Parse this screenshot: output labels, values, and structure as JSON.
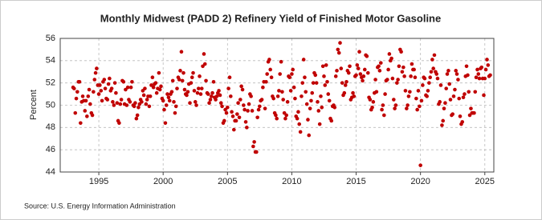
{
  "chart_data": {
    "type": "scatter",
    "title": "Monthly Midwest (PADD 2) Refinery Yield of Finished Motor Gasoline",
    "y_label": "Percent",
    "source": "Source: U.S. Energy Information Administration",
    "color": "#c00000",
    "grid": true,
    "xlim": [
      1992,
      2025.7
    ],
    "ylim": [
      44,
      56
    ],
    "xticks": [
      1995,
      2000,
      2005,
      2010,
      2015,
      2020,
      2025
    ],
    "yticks": [
      44,
      46,
      48,
      50,
      52,
      54,
      56
    ],
    "x": [
      1993.0,
      1993.08,
      1993.17,
      1993.25,
      1993.33,
      1993.42,
      1993.5,
      1993.58,
      1993.67,
      1993.75,
      1993.83,
      1993.92,
      1994.0,
      1994.08,
      1994.17,
      1994.25,
      1994.33,
      1994.42,
      1994.5,
      1994.58,
      1994.67,
      1994.75,
      1994.83,
      1994.92,
      1995.0,
      1995.08,
      1995.17,
      1995.25,
      1995.33,
      1995.42,
      1995.5,
      1995.58,
      1995.67,
      1995.75,
      1995.83,
      1995.92,
      1996.0,
      1996.08,
      1996.17,
      1996.25,
      1996.33,
      1996.42,
      1996.5,
      1996.58,
      1996.67,
      1996.75,
      1996.83,
      1996.92,
      1997.0,
      1997.08,
      1997.17,
      1997.25,
      1997.33,
      1997.42,
      1997.5,
      1997.58,
      1997.67,
      1997.75,
      1997.83,
      1997.92,
      1998.0,
      1998.08,
      1998.17,
      1998.25,
      1998.33,
      1998.42,
      1998.5,
      1998.58,
      1998.67,
      1998.75,
      1998.83,
      1998.92,
      1999.0,
      1999.08,
      1999.17,
      1999.25,
      1999.33,
      1999.42,
      1999.5,
      1999.58,
      1999.67,
      1999.75,
      1999.83,
      1999.92,
      2000.0,
      2000.08,
      2000.17,
      2000.25,
      2000.33,
      2000.42,
      2000.5,
      2000.58,
      2000.67,
      2000.75,
      2000.83,
      2000.92,
      2001.0,
      2001.08,
      2001.17,
      2001.25,
      2001.33,
      2001.42,
      2001.5,
      2001.58,
      2001.67,
      2001.75,
      2001.83,
      2001.92,
      2002.0,
      2002.08,
      2002.17,
      2002.25,
      2002.33,
      2002.42,
      2002.5,
      2002.58,
      2002.67,
      2002.75,
      2002.83,
      2002.92,
      2003.0,
      2003.08,
      2003.17,
      2003.25,
      2003.33,
      2003.42,
      2003.5,
      2003.58,
      2003.67,
      2003.75,
      2003.83,
      2003.92,
      2004.0,
      2004.08,
      2004.17,
      2004.25,
      2004.33,
      2004.42,
      2004.5,
      2004.58,
      2004.67,
      2004.75,
      2004.83,
      2004.92,
      2005.0,
      2005.08,
      2005.17,
      2005.25,
      2005.33,
      2005.42,
      2005.5,
      2005.58,
      2005.67,
      2005.75,
      2005.83,
      2005.92,
      2006.0,
      2006.08,
      2006.17,
      2006.25,
      2006.33,
      2006.42,
      2006.5,
      2006.58,
      2006.67,
      2006.75,
      2006.83,
      2006.92,
      2007.0,
      2007.08,
      2007.17,
      2007.25,
      2007.33,
      2007.42,
      2007.5,
      2007.58,
      2007.67,
      2007.75,
      2007.83,
      2007.92,
      2008.0,
      2008.08,
      2008.17,
      2008.25,
      2008.33,
      2008.42,
      2008.5,
      2008.58,
      2008.67,
      2008.75,
      2008.83,
      2008.92,
      2009.0,
      2009.08,
      2009.17,
      2009.25,
      2009.33,
      2009.42,
      2009.5,
      2009.58,
      2009.67,
      2009.75,
      2009.83,
      2009.92,
      2010.0,
      2010.08,
      2010.17,
      2010.25,
      2010.33,
      2010.42,
      2010.5,
      2010.58,
      2010.67,
      2010.75,
      2010.83,
      2010.92,
      2011.0,
      2011.08,
      2011.17,
      2011.25,
      2011.33,
      2011.42,
      2011.5,
      2011.58,
      2011.67,
      2011.75,
      2011.83,
      2011.92,
      2012.0,
      2012.08,
      2012.17,
      2012.25,
      2012.33,
      2012.42,
      2012.5,
      2012.58,
      2012.67,
      2012.75,
      2012.83,
      2012.92,
      2013.0,
      2013.08,
      2013.17,
      2013.25,
      2013.33,
      2013.42,
      2013.5,
      2013.58,
      2013.67,
      2013.75,
      2013.83,
      2013.92,
      2014.0,
      2014.08,
      2014.17,
      2014.25,
      2014.33,
      2014.42,
      2014.5,
      2014.58,
      2014.67,
      2014.75,
      2014.83,
      2014.92,
      2015.0,
      2015.08,
      2015.17,
      2015.25,
      2015.33,
      2015.42,
      2015.5,
      2015.58,
      2015.67,
      2015.75,
      2015.83,
      2015.92,
      2016.0,
      2016.08,
      2016.17,
      2016.25,
      2016.33,
      2016.42,
      2016.5,
      2016.58,
      2016.67,
      2016.75,
      2016.83,
      2016.92,
      2017.0,
      2017.08,
      2017.17,
      2017.25,
      2017.33,
      2017.42,
      2017.5,
      2017.58,
      2017.67,
      2017.75,
      2017.83,
      2017.92,
      2018.0,
      2018.08,
      2018.17,
      2018.25,
      2018.33,
      2018.42,
      2018.5,
      2018.58,
      2018.67,
      2018.75,
      2018.83,
      2018.92,
      2019.0,
      2019.08,
      2019.17,
      2019.25,
      2019.33,
      2019.42,
      2019.5,
      2019.58,
      2019.67,
      2019.75,
      2019.83,
      2019.92,
      2020.0,
      2020.08,
      2020.17,
      2020.25,
      2020.33,
      2020.42,
      2020.5,
      2020.58,
      2020.67,
      2020.75,
      2020.83,
      2020.92,
      2021.0,
      2021.08,
      2021.17,
      2021.25,
      2021.33,
      2021.42,
      2021.5,
      2021.58,
      2021.67,
      2021.75,
      2021.83,
      2021.92,
      2022.0,
      2022.08,
      2022.17,
      2022.25,
      2022.33,
      2022.42,
      2022.5,
      2022.58,
      2022.67,
      2022.75,
      2022.83,
      2022.92,
      2023.0,
      2023.08,
      2023.17,
      2023.25,
      2023.33,
      2023.42,
      2023.5,
      2023.58,
      2023.67,
      2023.75,
      2023.83,
      2023.92,
      2024.0,
      2024.08,
      2024.17,
      2024.25,
      2024.33,
      2024.42,
      2024.5,
      2024.58,
      2024.67,
      2024.75,
      2024.83,
      2024.92,
      2025.0,
      2025.08,
      2025.17,
      2025.25,
      2025.33,
      2025.42
    ],
    "values": [
      51.6,
      51.5,
      49.3,
      50.6,
      51.2,
      52.1,
      52.1,
      48.4,
      50.3,
      50.8,
      50.4,
      49.5,
      50.4,
      49.0,
      50.8,
      51.4,
      50.1,
      49.3,
      49.1,
      51.2,
      52.3,
      52.9,
      53.3,
      51.8,
      51.0,
      51.8,
      51.3,
      50.4,
      52.1,
      52.3,
      51.5,
      50.6,
      50.5,
      51.9,
      52.4,
      51.3,
      51.5,
      50.3,
      50.0,
      52.0,
      51.1,
      50.2,
      48.6,
      48.4,
      50.1,
      50.5,
      52.2,
      52.1,
      50.1,
      51.4,
      50.0,
      51.6,
      50.5,
      50.3,
      51.6,
      52.1,
      50.0,
      49.9,
      50.2,
      48.8,
      49.1,
      49.8,
      50.1,
      50.5,
      50.3,
      51.3,
      50.9,
      51.5,
      50.1,
      50.5,
      50.8,
      49.9,
      50.8,
      51.8,
      52.5,
      51.6,
      51.9,
      52.0,
      51.1,
      51.5,
      52.9,
      51.4,
      51.7,
      50.6,
      50.4,
      49.6,
      48.4,
      50.0,
      51.0,
      50.7,
      50.4,
      51.0,
      51.2,
      52.2,
      50.3,
      49.3,
      49.9,
      51.5,
      52.5,
      52.3,
      53.1,
      54.8,
      52.2,
      52.9,
      51.4,
      51.0,
      50.9,
      51.2,
      51.9,
      50.2,
      52.0,
      52.5,
      52.9,
      51.3,
      50.3,
      50.0,
      51.1,
      51.5,
      52.6,
      51.0,
      51.5,
      53.5,
      54.6,
      53.7,
      52.2,
      51.1,
      51.0,
      50.2,
      50.5,
      50.8,
      51.1,
      52.1,
      50.7,
      50.5,
      50.8,
      51.1,
      51.3,
      50.9,
      50.2,
      49.9,
      48.4,
      48.6,
      49.6,
      49.3,
      49.8,
      51.5,
      52.5,
      50.8,
      49.4,
      49.0,
      47.8,
      48.6,
      48.6,
      49.2,
      50.2,
      48.9,
      50.5,
      51.7,
      51.4,
      50.0,
      49.6,
      48.5,
      48.0,
      49.5,
      50.1,
      51.0,
      50.8,
      49.5,
      46.3,
      46.7,
      45.8,
      45.8,
      48.9,
      49.6,
      49.9,
      50.4,
      50.5,
      51.6,
      52.1,
      49.7,
      52.1,
      52.8,
      53.9,
      54.1,
      53.2,
      52.5,
      50.8,
      50.6,
      49.3,
      49.1,
      48.8,
      50.8,
      51.3,
      52.8,
      53.9,
      51.2,
      50.5,
      49.3,
      48.8,
      49.1,
      50.3,
      52.6,
      52.5,
      51.3,
      52.8,
      53.2,
      51.6,
      50.6,
      49.0,
      48.8,
      49.4,
      48.3,
      47.6,
      50.8,
      52.0,
      54.1,
      52.5,
      51.2,
      50.1,
      48.7,
      47.3,
      49.7,
      50.4,
      51.1,
      52.0,
      52.9,
      52.7,
      52.0,
      50.3,
      49.5,
      48.3,
      50.8,
      49.8,
      53.5,
      52.6,
      51.8,
      53.6,
      52.1,
      51.0,
      50.4,
      48.8,
      48.6,
      49.9,
      50.0,
      49.8,
      52.6,
      53.1,
      55.0,
      54.7,
      55.6,
      53.3,
      52.0,
      50.9,
      51.1,
      51.8,
      52.1,
      53.1,
      52.9,
      53.5,
      50.5,
      50.7,
      51.1,
      50.8,
      52.6,
      52.7,
      53.6,
      53.3,
      54.8,
      52.8,
      52.5,
      52.2,
      52.6,
      53.2,
      54.5,
      54.4,
      52.9,
      50.7,
      50.5,
      49.6,
      49.8,
      50.3,
      51.1,
      52.3,
      51.2,
      53.4,
      53.5,
      53.1,
      53.8,
      49.6,
      50.0,
      49.1,
      51.0,
      52.2,
      52.3,
      53.2,
      54.6,
      54.0,
      54.2,
      52.4,
      50.5,
      49.7,
      50.0,
      52.0,
      52.3,
      53.5,
      55.0,
      54.8,
      53.0,
      53.4,
      52.6,
      51.3,
      49.7,
      50.0,
      50.8,
      51.2,
      52.6,
      53.7,
      53.2,
      53.2,
      52.5,
      50.6,
      49.6,
      51.3,
      49.9,
      44.6,
      50.4,
      51.8,
      52.5,
      52.4,
      50.9,
      50.8,
      51.3,
      52.0,
      52.5,
      53.0,
      54.1,
      53.3,
      54.5,
      53.0,
      52.8,
      52.4,
      50.1,
      50.3,
      51.8,
      48.2,
      48.6,
      49.7,
      50.2,
      51.5,
      52.8,
      53.1,
      51.9,
      50.5,
      49.1,
      49.2,
      50.8,
      51.4,
      53.1,
      52.8,
      52.3,
      50.6,
      49.0,
      48.3,
      48.5,
      50.7,
      51.0,
      52.6,
      53.5,
      52.7,
      51.2,
      49.1,
      49.7,
      49.3,
      49.3,
      49.3,
      51.2,
      52.5,
      53.2,
      52.8,
      52.4,
      53.3,
      53.4,
      52.4,
      50.9,
      52.4,
      53.2,
      54.1,
      53.6,
      52.6,
      52.7
    ]
  }
}
